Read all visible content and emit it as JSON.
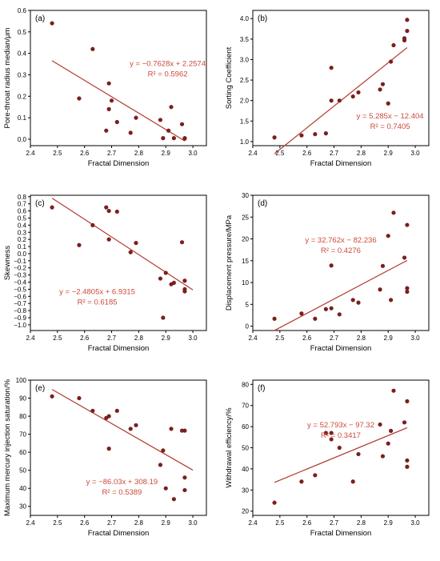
{
  "figure": {
    "colors": {
      "point": "#7a1f1f",
      "fit_line": "#b03a2e",
      "equation_text": "#cc4a3a",
      "axis": "#000000"
    }
  },
  "chart_data": [
    {
      "type": "scatter",
      "panel_label": "(a)",
      "xlabel": "Fractal Dimension",
      "ylabel": "Pore-throat radius median/μm",
      "xlim": [
        2.4,
        3.05
      ],
      "ylim": [
        -0.03,
        0.6
      ],
      "xticks": [
        2.4,
        2.5,
        2.6,
        2.7,
        2.8,
        2.9,
        3.0
      ],
      "xtick_labels": [
        "2.4",
        "2.5",
        "2.6",
        "2.7",
        "2.8",
        "2.9",
        "3.0"
      ],
      "yticks": [
        0.0,
        0.1,
        0.2,
        0.3,
        0.4,
        0.5,
        0.6
      ],
      "ytick_labels": [
        "0.0",
        "0.1",
        "0.2",
        "0.3",
        "0.4",
        "0.5",
        "0.6"
      ],
      "x": [
        2.48,
        2.58,
        2.63,
        2.68,
        2.69,
        2.69,
        2.7,
        2.72,
        2.77,
        2.79,
        2.88,
        2.89,
        2.91,
        2.92,
        2.93,
        2.96,
        2.97,
        2.97
      ],
      "y": [
        0.54,
        0.19,
        0.42,
        0.04,
        0.14,
        0.26,
        0.18,
        0.08,
        0.03,
        0.1,
        0.09,
        0.005,
        0.04,
        0.15,
        0.005,
        0.07,
        0.005,
        0.003
      ],
      "fit": {
        "slope": -0.7628,
        "intercept": 2.2574,
        "x_range": [
          2.48,
          2.97
        ]
      },
      "equation": "y = −0.7628x + 2.2574",
      "r2": "R² = 0.5962",
      "annotation_position": "right"
    },
    {
      "type": "scatter",
      "panel_label": "(b)",
      "xlabel": "Fractal Dimension",
      "ylabel": "Sorting Coefficient",
      "xlim": [
        2.4,
        3.05
      ],
      "ylim": [
        0.9,
        4.2
      ],
      "xticks": [
        2.4,
        2.5,
        2.6,
        2.7,
        2.8,
        2.9,
        3.0
      ],
      "xtick_labels": [
        "2.4",
        "2.5",
        "2.6",
        "2.7",
        "2.8",
        "2.9",
        "3.0"
      ],
      "yticks": [
        1.0,
        1.5,
        2.0,
        2.5,
        3.0,
        3.5,
        4.0
      ],
      "ytick_labels": [
        "1.0",
        "1.5",
        "2.0",
        "2.5",
        "3.0",
        "3.5",
        "4.0"
      ],
      "x": [
        2.48,
        2.58,
        2.63,
        2.67,
        2.69,
        2.69,
        2.72,
        2.77,
        2.79,
        2.87,
        2.88,
        2.9,
        2.91,
        2.92,
        2.96,
        2.96,
        2.97,
        2.97
      ],
      "y": [
        1.1,
        1.15,
        1.18,
        1.2,
        2.8,
        2.0,
        2.0,
        2.1,
        2.2,
        2.27,
        2.4,
        1.93,
        2.95,
        3.35,
        3.47,
        3.52,
        3.7,
        3.97
      ],
      "fit": {
        "slope": 5.285,
        "intercept": -12.404,
        "x_range": [
          2.48,
          2.97
        ]
      },
      "equation": "y = 5.285x − 12.404",
      "r2": "R² = 0.7405",
      "annotation_position": "bottom-right"
    },
    {
      "type": "scatter",
      "panel_label": "(c)",
      "xlabel": "Fractal Dimension",
      "ylabel": "Skewness",
      "xlim": [
        2.4,
        3.05
      ],
      "ylim": [
        -1.08,
        0.82
      ],
      "xticks": [
        2.4,
        2.5,
        2.6,
        2.7,
        2.8,
        2.9,
        3.0
      ],
      "xtick_labels": [
        "2.4",
        "2.5",
        "2.6",
        "2.7",
        "2.8",
        "2.9",
        "3.0"
      ],
      "yticks": [
        -1.0,
        -0.9,
        -0.8,
        -0.7,
        -0.6,
        -0.5,
        -0.4,
        -0.3,
        -0.2,
        -0.1,
        0.0,
        0.1,
        0.2,
        0.3,
        0.4,
        0.5,
        0.6,
        0.7,
        0.8
      ],
      "ytick_labels": [
        "−1.0",
        "−0.9",
        "−0.8",
        "−0.7",
        "−0.6",
        "−0.5",
        "−0.4",
        "−0.3",
        "−0.2",
        "−0.1",
        "0.0",
        "0.1",
        "0.2",
        "0.3",
        "0.4",
        "0.5",
        "0.6",
        "0.7",
        "0.8"
      ],
      "x": [
        2.48,
        2.58,
        2.63,
        2.68,
        2.69,
        2.69,
        2.72,
        2.77,
        2.79,
        2.88,
        2.89,
        2.9,
        2.92,
        2.93,
        2.96,
        2.97,
        2.97,
        2.97
      ],
      "y": [
        0.65,
        0.12,
        0.4,
        0.65,
        0.6,
        0.2,
        0.59,
        0.02,
        0.15,
        -0.35,
        -0.9,
        -0.27,
        -0.43,
        -0.41,
        0.16,
        -0.38,
        -0.5,
        -0.53
      ],
      "fit": {
        "slope": -2.4805,
        "intercept": 6.9315,
        "x_range": [
          2.48,
          3.0
        ]
      },
      "equation": "y = −2.4805x + 6.9315",
      "r2": "R² = 0.6185",
      "annotation_position": "bottom-left"
    },
    {
      "type": "scatter",
      "panel_label": "(d)",
      "xlabel": "Fractal Dimension",
      "ylabel": "Displacement pressure/MPa",
      "xlim": [
        2.4,
        3.05
      ],
      "ylim": [
        -1,
        30
      ],
      "xticks": [
        2.4,
        2.5,
        2.6,
        2.7,
        2.8,
        2.9,
        3.0
      ],
      "xtick_labels": [
        "2.4",
        "2.5",
        "2.6",
        "2.7",
        "2.8",
        "2.9",
        "3.0"
      ],
      "yticks": [
        0,
        5,
        10,
        15,
        20,
        25,
        30
      ],
      "ytick_labels": [
        "0",
        "5",
        "10",
        "15",
        "20",
        "25",
        "30"
      ],
      "x": [
        2.48,
        2.58,
        2.63,
        2.67,
        2.69,
        2.69,
        2.72,
        2.77,
        2.79,
        2.87,
        2.88,
        2.9,
        2.91,
        2.92,
        2.96,
        2.97,
        2.97,
        2.97
      ],
      "y": [
        1.7,
        2.9,
        1.7,
        3.9,
        4.1,
        13.9,
        2.7,
        6.0,
        5.4,
        8.4,
        13.8,
        20.7,
        6.0,
        26.0,
        15.7,
        8.7,
        7.9,
        23.2
      ],
      "fit": {
        "slope": 32.762,
        "intercept": -82.236,
        "x_range": [
          2.48,
          2.97
        ]
      },
      "equation": "y = 32.762x − 82.236",
      "r2": "R² = 0.4276",
      "annotation_position": "top-left"
    },
    {
      "type": "scatter",
      "panel_label": "(e)",
      "xlabel": "Fractal Dimension",
      "ylabel": "Maximum mercury injection saturation/%",
      "xlim": [
        2.4,
        3.05
      ],
      "ylim": [
        25,
        100
      ],
      "xticks": [
        2.4,
        2.5,
        2.6,
        2.7,
        2.8,
        2.9,
        3.0
      ],
      "xtick_labels": [
        "2.4",
        "2.5",
        "2.6",
        "2.7",
        "2.8",
        "2.9",
        "3.0"
      ],
      "yticks": [
        30,
        40,
        50,
        60,
        70,
        80,
        90,
        100
      ],
      "ytick_labels": [
        "30",
        "40",
        "50",
        "60",
        "70",
        "80",
        "90",
        "100"
      ],
      "x": [
        2.48,
        2.58,
        2.63,
        2.68,
        2.69,
        2.69,
        2.72,
        2.77,
        2.79,
        2.88,
        2.89,
        2.9,
        2.92,
        2.93,
        2.96,
        2.97,
        2.97,
        2.97
      ],
      "y": [
        91,
        90,
        83,
        79,
        80,
        62,
        83,
        73,
        75,
        53,
        61,
        40,
        73,
        34,
        72,
        72,
        46,
        39
      ],
      "fit": {
        "slope": -86.03,
        "intercept": 308.19,
        "x_range": [
          2.48,
          3.0
        ]
      },
      "equation": "y = −86.03x + 308.19",
      "r2": "R² = 0.5389",
      "annotation_position": "bottom-center"
    },
    {
      "type": "scatter",
      "panel_label": "(f)",
      "xlabel": "Fractal Dimension",
      "ylabel": "Withdrawal efficiency/%",
      "xlim": [
        2.4,
        3.05
      ],
      "ylim": [
        18,
        82
      ],
      "xticks": [
        2.4,
        2.5,
        2.6,
        2.7,
        2.8,
        2.9,
        3.0
      ],
      "xtick_labels": [
        "2.4",
        "2.5",
        "2.6",
        "2.7",
        "2.8",
        "2.9",
        "3.0"
      ],
      "yticks": [
        20,
        30,
        40,
        50,
        60,
        70,
        80
      ],
      "ytick_labels": [
        "20",
        "30",
        "40",
        "50",
        "60",
        "70",
        "80"
      ],
      "x": [
        2.48,
        2.58,
        2.63,
        2.67,
        2.69,
        2.69,
        2.72,
        2.77,
        2.79,
        2.87,
        2.88,
        2.9,
        2.91,
        2.92,
        2.96,
        2.97,
        2.97,
        2.97
      ],
      "y": [
        24,
        34,
        37,
        57,
        57,
        54,
        50,
        34,
        47,
        61,
        46,
        52,
        58,
        77,
        62,
        72,
        44,
        41
      ],
      "fit": {
        "slope": 52.793,
        "intercept": -97.32,
        "x_range": [
          2.48,
          2.97
        ]
      },
      "equation": "y = 52.793x − 97.32",
      "r2": "R² = 0.3417",
      "annotation_position": "top-left"
    }
  ]
}
